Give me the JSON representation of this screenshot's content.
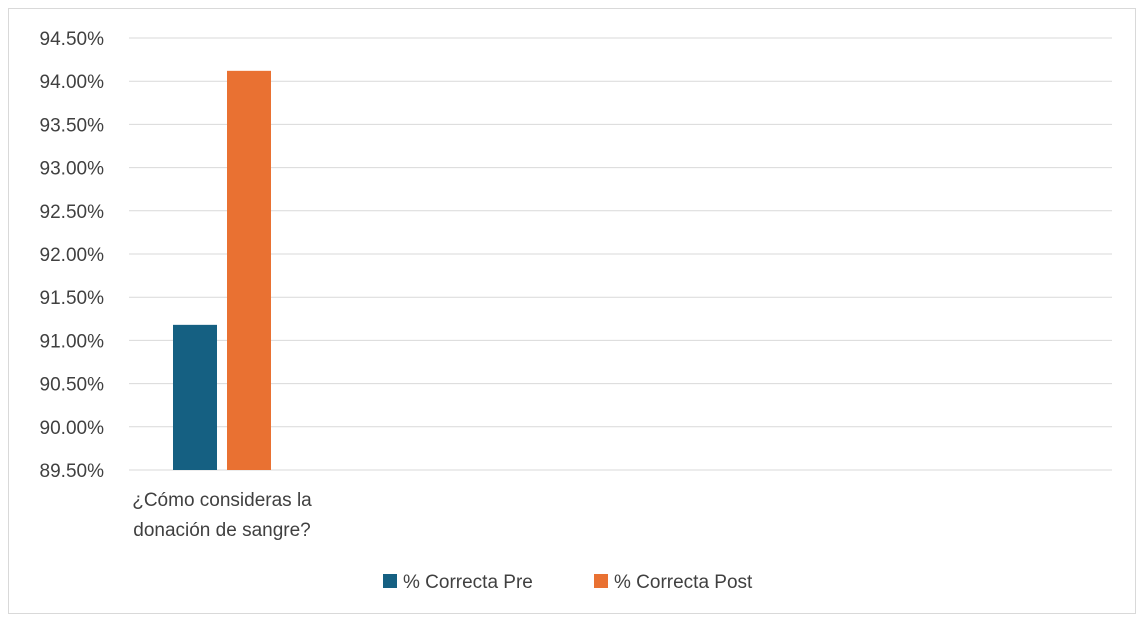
{
  "chart_data": {
    "type": "bar",
    "title": "",
    "xlabel": "",
    "ylabel": "",
    "categories": [
      "¿Cómo consideras la donación de sangre?"
    ],
    "category_lines": [
      "¿Cómo consideras la",
      "donación de sangre?"
    ],
    "series": [
      {
        "name": "% Correcta Pre",
        "values": [
          91.18
        ],
        "color": "#156082"
      },
      {
        "name": "% Correcta Post",
        "values": [
          94.12
        ],
        "color": "#E97132"
      }
    ],
    "ylim": [
      89.5,
      94.5
    ],
    "yticks": [
      89.5,
      90.0,
      90.5,
      91.0,
      91.5,
      92.0,
      92.5,
      93.0,
      93.5,
      94.0,
      94.5
    ],
    "ytick_labels": [
      "89.50%",
      "90.00%",
      "90.50%",
      "91.00%",
      "91.50%",
      "92.00%",
      "92.50%",
      "93.00%",
      "93.50%",
      "94.00%",
      "94.50%"
    ],
    "grid": true,
    "legend_position": "bottom",
    "gridline_color": "#d9d9d9"
  }
}
